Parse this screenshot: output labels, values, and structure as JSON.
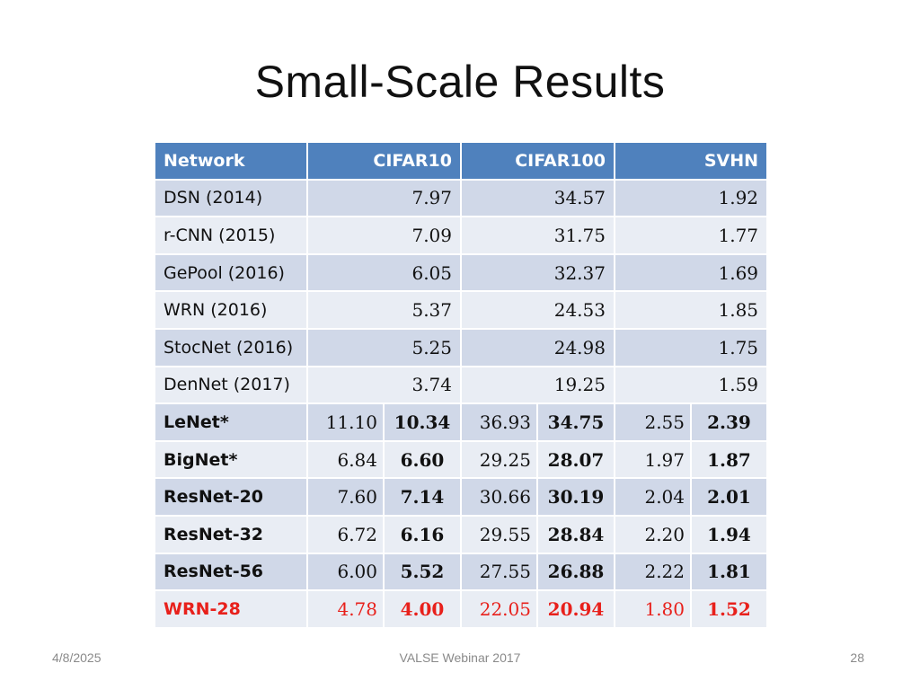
{
  "slide": {
    "title": "Small-Scale Results"
  },
  "table": {
    "headers": [
      "Network",
      "CIFAR10",
      "CIFAR100",
      "SVHN"
    ],
    "simple_rows": [
      {
        "name": "DSN (2014)",
        "values": [
          "7.97",
          "34.57",
          "1.92"
        ]
      },
      {
        "name": "r-CNN (2015)",
        "values": [
          "7.09",
          "31.75",
          "1.77"
        ]
      },
      {
        "name": "GePool (2016)",
        "values": [
          "6.05",
          "32.37",
          "1.69"
        ]
      },
      {
        "name": "WRN (2016)",
        "values": [
          "5.37",
          "24.53",
          "1.85"
        ]
      },
      {
        "name": "StocNet (2016)",
        "values": [
          "5.25",
          "24.98",
          "1.75"
        ]
      },
      {
        "name": "DenNet (2017)",
        "values": [
          "3.74",
          "19.25",
          "1.59"
        ]
      }
    ],
    "paired_rows": [
      {
        "name": "LeNet*",
        "values": [
          "11.10",
          "10.34",
          "36.93",
          "34.75",
          "2.55",
          "2.39"
        ]
      },
      {
        "name": "BigNet*",
        "values": [
          "6.84",
          "6.60",
          "29.25",
          "28.07",
          "1.97",
          "1.87"
        ]
      },
      {
        "name": "ResNet-20",
        "values": [
          "7.60",
          "7.14",
          "30.66",
          "30.19",
          "2.04",
          "2.01"
        ]
      },
      {
        "name": "ResNet-32",
        "values": [
          "6.72",
          "6.16",
          "29.55",
          "28.84",
          "2.20",
          "1.94"
        ]
      },
      {
        "name": "ResNet-56",
        "values": [
          "6.00",
          "5.52",
          "27.55",
          "26.88",
          "2.22",
          "1.81"
        ]
      },
      {
        "name": "WRN-28",
        "values": [
          "4.78",
          "4.00",
          "22.05",
          "20.94",
          "1.80",
          "1.52"
        ]
      }
    ]
  },
  "colors": {
    "header_bg": "#4f81bd",
    "row_dark": "#d0d8e8",
    "row_light": "#e9edf4",
    "highlight": "#e8201b"
  },
  "footer": {
    "date": "4/8/2025",
    "center": "VALSE Webinar 2017",
    "page": "28"
  }
}
